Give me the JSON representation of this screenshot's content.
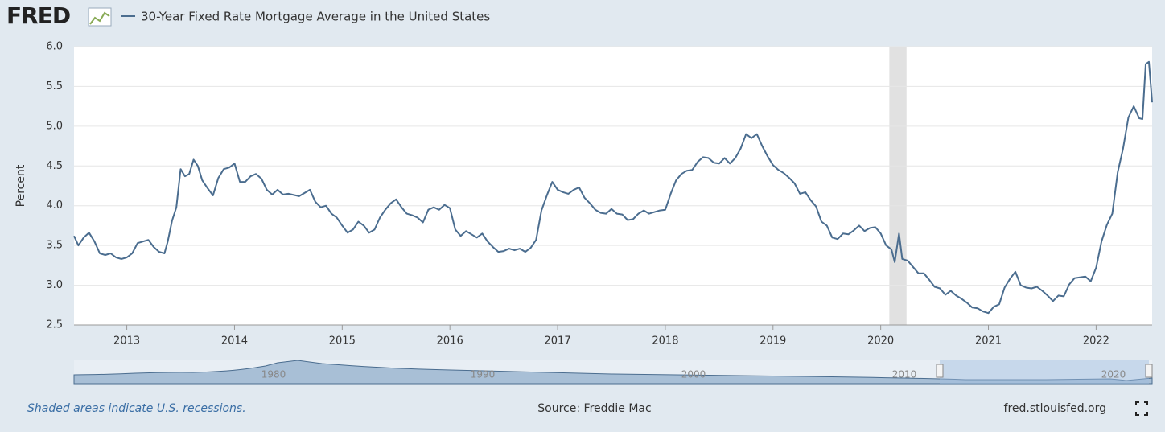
{
  "chart_data": {
    "type": "line",
    "brand": "FRED",
    "series": [
      {
        "name": "30-Year Fixed Rate Mortgage Average in the United States",
        "color": "#4b6d8f",
        "x": [
          2012.51,
          2012.55,
          2012.6,
          2012.65,
          2012.7,
          2012.75,
          2012.8,
          2012.85,
          2012.9,
          2012.95,
          2013.0,
          2013.05,
          2013.1,
          2013.15,
          2013.2,
          2013.25,
          2013.3,
          2013.35,
          2013.38,
          2013.42,
          2013.46,
          2013.5,
          2013.54,
          2013.58,
          2013.62,
          2013.66,
          2013.7,
          2013.75,
          2013.8,
          2013.85,
          2013.9,
          2013.95,
          2014.0,
          2014.05,
          2014.1,
          2014.15,
          2014.2,
          2014.25,
          2014.3,
          2014.35,
          2014.4,
          2014.45,
          2014.5,
          2014.6,
          2014.7,
          2014.75,
          2014.8,
          2014.85,
          2014.9,
          2014.95,
          2015.0,
          2015.05,
          2015.1,
          2015.15,
          2015.2,
          2015.25,
          2015.3,
          2015.35,
          2015.4,
          2015.45,
          2015.5,
          2015.55,
          2015.6,
          2015.65,
          2015.7,
          2015.75,
          2015.8,
          2015.85,
          2015.9,
          2015.95,
          2016.0,
          2016.05,
          2016.1,
          2016.15,
          2016.2,
          2016.25,
          2016.3,
          2016.35,
          2016.4,
          2016.45,
          2016.5,
          2016.55,
          2016.6,
          2016.65,
          2016.7,
          2016.75,
          2016.8,
          2016.85,
          2016.9,
          2016.95,
          2017.0,
          2017.05,
          2017.1,
          2017.15,
          2017.2,
          2017.25,
          2017.3,
          2017.35,
          2017.4,
          2017.45,
          2017.5,
          2017.55,
          2017.6,
          2017.65,
          2017.7,
          2017.75,
          2017.8,
          2017.85,
          2017.9,
          2017.95,
          2018.0,
          2018.05,
          2018.1,
          2018.15,
          2018.2,
          2018.25,
          2018.3,
          2018.35,
          2018.4,
          2018.45,
          2018.5,
          2018.55,
          2018.6,
          2018.65,
          2018.7,
          2018.75,
          2018.8,
          2018.85,
          2018.9,
          2018.95,
          2019.0,
          2019.05,
          2019.1,
          2019.15,
          2019.2,
          2019.25,
          2019.3,
          2019.35,
          2019.4,
          2019.45,
          2019.5,
          2019.55,
          2019.6,
          2019.65,
          2019.7,
          2019.75,
          2019.8,
          2019.85,
          2019.9,
          2019.95,
          2020.0,
          2020.05,
          2020.1,
          2020.13,
          2020.17,
          2020.2,
          2020.25,
          2020.3,
          2020.35,
          2020.4,
          2020.45,
          2020.5,
          2020.55,
          2020.6,
          2020.65,
          2020.7,
          2020.75,
          2020.8,
          2020.85,
          2020.9,
          2020.95,
          2021.0,
          2021.05,
          2021.1,
          2021.15,
          2021.2,
          2021.25,
          2021.3,
          2021.35,
          2021.4,
          2021.45,
          2021.5,
          2021.55,
          2021.6,
          2021.65,
          2021.7,
          2021.75,
          2021.8,
          2021.85,
          2021.9,
          2021.95,
          2022.0,
          2022.05,
          2022.1,
          2022.15,
          2022.2,
          2022.25,
          2022.3,
          2022.35,
          2022.4,
          2022.43,
          2022.46,
          2022.49,
          2022.52
        ],
        "values": [
          3.62,
          3.5,
          3.6,
          3.66,
          3.55,
          3.4,
          3.38,
          3.4,
          3.35,
          3.33,
          3.35,
          3.4,
          3.53,
          3.55,
          3.57,
          3.48,
          3.42,
          3.4,
          3.55,
          3.81,
          3.98,
          4.46,
          4.37,
          4.4,
          4.58,
          4.5,
          4.32,
          4.22,
          4.13,
          4.35,
          4.46,
          4.48,
          4.53,
          4.3,
          4.3,
          4.37,
          4.4,
          4.34,
          4.2,
          4.14,
          4.2,
          4.14,
          4.15,
          4.12,
          4.2,
          4.05,
          3.98,
          4.0,
          3.9,
          3.85,
          3.75,
          3.66,
          3.7,
          3.8,
          3.75,
          3.66,
          3.7,
          3.85,
          3.95,
          4.03,
          4.08,
          3.98,
          3.9,
          3.88,
          3.85,
          3.79,
          3.95,
          3.98,
          3.95,
          4.01,
          3.97,
          3.7,
          3.62,
          3.68,
          3.64,
          3.6,
          3.65,
          3.55,
          3.48,
          3.42,
          3.43,
          3.46,
          3.44,
          3.46,
          3.42,
          3.47,
          3.57,
          3.94,
          4.13,
          4.3,
          4.2,
          4.17,
          4.15,
          4.2,
          4.23,
          4.1,
          4.03,
          3.95,
          3.91,
          3.9,
          3.96,
          3.9,
          3.89,
          3.82,
          3.83,
          3.9,
          3.94,
          3.9,
          3.92,
          3.94,
          3.95,
          4.15,
          4.32,
          4.4,
          4.44,
          4.45,
          4.55,
          4.61,
          4.6,
          4.54,
          4.53,
          4.6,
          4.53,
          4.6,
          4.72,
          4.9,
          4.85,
          4.9,
          4.75,
          4.62,
          4.51,
          4.45,
          4.41,
          4.35,
          4.28,
          4.15,
          4.17,
          4.07,
          3.99,
          3.8,
          3.75,
          3.6,
          3.58,
          3.65,
          3.64,
          3.69,
          3.75,
          3.68,
          3.72,
          3.73,
          3.65,
          3.5,
          3.45,
          3.29,
          3.65,
          3.33,
          3.31,
          3.23,
          3.15,
          3.15,
          3.07,
          2.98,
          2.96,
          2.88,
          2.93,
          2.87,
          2.83,
          2.78,
          2.72,
          2.71,
          2.67,
          2.65,
          2.73,
          2.76,
          2.97,
          3.08,
          3.17,
          3.0,
          2.97,
          2.96,
          2.98,
          2.93,
          2.87,
          2.8,
          2.87,
          2.86,
          3.01,
          3.09,
          3.1,
          3.11,
          3.05,
          3.22,
          3.55,
          3.76,
          3.9,
          4.42,
          4.72,
          5.11,
          5.25,
          5.1,
          5.09,
          5.78,
          5.81,
          5.3
        ]
      }
    ],
    "recessions": [
      {
        "start": 2020.08,
        "end": 2020.24
      }
    ],
    "recession_color": "#e1e1e1",
    "xlim": [
      2012.51,
      2022.52
    ],
    "xticks": [
      2013,
      2014,
      2015,
      2016,
      2017,
      2018,
      2019,
      2020,
      2021,
      2022
    ],
    "ylim": [
      2.5,
      6.0
    ],
    "yticks": [
      2.5,
      {
        "value": 3.0,
        "label": "3.0"
      },
      3.5,
      {
        "value": 4.0,
        "label": "4.0"
      },
      4.5,
      {
        "value": 5.0,
        "label": "5.0"
      },
      5.5,
      {
        "value": 6.0,
        "label": "6.0"
      }
    ],
    "ylabel": "Percent",
    "grid": true,
    "navigator_labels": [
      "1980",
      "1990",
      "2000",
      "2010",
      "2020"
    ],
    "footnote": "Shaded areas indicate U.S. recessions.",
    "source": "Source: Freddie Mac",
    "site": "fred.stlouisfed.org"
  }
}
